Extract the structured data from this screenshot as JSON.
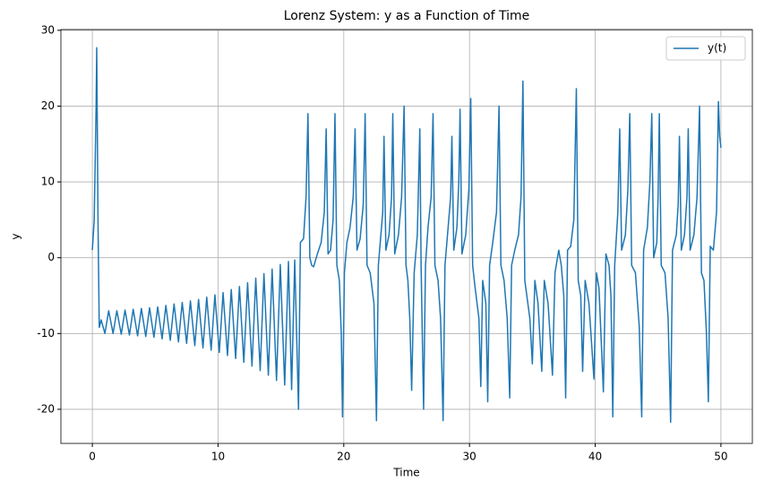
{
  "chart_data": {
    "type": "line",
    "title": "Lorenz System: y as a Function of Time",
    "xlabel": "Time",
    "ylabel": "y",
    "x": [
      0,
      0.15,
      0.3,
      0.35,
      0.45,
      0.55,
      0.7,
      1.0,
      1.3,
      1.65,
      1.95,
      2.3,
      2.6,
      2.95,
      3.25,
      3.6,
      3.9,
      4.25,
      4.55,
      4.9,
      5.2,
      5.55,
      5.85,
      6.2,
      6.5,
      6.85,
      7.15,
      7.5,
      7.8,
      8.15,
      8.45,
      8.8,
      9.1,
      9.45,
      9.75,
      10.1,
      10.4,
      10.75,
      11.05,
      11.4,
      11.7,
      12.05,
      12.35,
      12.7,
      13.0,
      13.35,
      13.65,
      14.0,
      14.3,
      14.65,
      14.95,
      15.3,
      15.6,
      15.85,
      16.1,
      16.4,
      16.55,
      16.8,
      17.0,
      17.15,
      17.3,
      17.45,
      17.6,
      17.9,
      18.2,
      18.45,
      18.6,
      18.75,
      18.95,
      19.15,
      19.3,
      19.45,
      19.65,
      19.8,
      19.9,
      20.05,
      20.25,
      20.5,
      20.75,
      20.9,
      21.05,
      21.3,
      21.55,
      21.7,
      21.85,
      22.1,
      22.4,
      22.6,
      22.75,
      22.95,
      23.1,
      23.2,
      23.35,
      23.6,
      23.8,
      23.9,
      24.05,
      24.35,
      24.6,
      24.8,
      24.95,
      25.1,
      25.25,
      25.4,
      25.6,
      25.85,
      26.05,
      26.15,
      26.35,
      26.5,
      26.7,
      26.95,
      27.1,
      27.25,
      27.5,
      27.7,
      27.9,
      28.05,
      28.3,
      28.5,
      28.6,
      28.75,
      29.0,
      29.15,
      29.25,
      29.4,
      29.7,
      29.95,
      30.1,
      30.25,
      30.45,
      30.6,
      30.75,
      30.9,
      31.05,
      31.3,
      31.45,
      31.6,
      31.85,
      32.15,
      32.35,
      32.5,
      32.75,
      33.0,
      33.2,
      33.35,
      33.6,
      33.9,
      34.1,
      34.25,
      34.4,
      34.6,
      34.8,
      35.0,
      35.2,
      35.45,
      35.75,
      35.95,
      36.25,
      36.6,
      36.8,
      37.1,
      37.3,
      37.5,
      37.65,
      37.8,
      38.05,
      38.3,
      38.5,
      38.65,
      38.85,
      39.0,
      39.2,
      39.5,
      39.9,
      40.1,
      40.3,
      40.65,
      40.85,
      41.1,
      41.25,
      41.4,
      41.55,
      41.8,
      41.95,
      42.1,
      42.4,
      42.6,
      42.75,
      42.9,
      43.2,
      43.5,
      43.7,
      43.85,
      44.15,
      44.35,
      44.5,
      44.65,
      44.9,
      45.0,
      45.1,
      45.25,
      45.55,
      45.8,
      46.0,
      46.15,
      46.45,
      46.6,
      46.7,
      46.85,
      47.1,
      47.3,
      47.4,
      47.55,
      47.85,
      48.1,
      48.3,
      48.45,
      48.65,
      48.85,
      49.0,
      49.15,
      49.4,
      49.65,
      49.8,
      49.9,
      50
    ],
    "series": [
      {
        "name": "y(t)",
        "color": "#1f77b4",
        "values": [
          1,
          5,
          20,
          27.7,
          5,
          -9.2,
          -8.2,
          -10,
          -7.0,
          -10.0,
          -7.0,
          -10.1,
          -6.9,
          -10.2,
          -6.8,
          -10.3,
          -6.7,
          -10.4,
          -6.6,
          -10.5,
          -6.5,
          -10.7,
          -6.3,
          -10.9,
          -6.1,
          -11.1,
          -5.9,
          -11.3,
          -5.7,
          -11.6,
          -5.5,
          -11.9,
          -5.2,
          -12.2,
          -4.9,
          -12.5,
          -4.6,
          -12.9,
          -4.2,
          -13.3,
          -3.8,
          -13.8,
          -3.3,
          -14.3,
          -2.7,
          -14.9,
          -2.1,
          -15.5,
          -1.5,
          -16.2,
          -0.9,
          -16.8,
          -0.5,
          -17.4,
          -0.3,
          -20,
          2,
          2.5,
          8,
          19,
          0,
          -1,
          -1.2,
          0.5,
          2,
          6,
          17,
          0.5,
          1,
          5,
          19,
          -1,
          -3,
          -10,
          -21,
          -2,
          2,
          4,
          8,
          17,
          1,
          2.5,
          7,
          19,
          -1,
          -2,
          -6,
          -21.5,
          -1,
          3,
          6,
          16,
          1,
          3,
          8,
          19,
          0.5,
          3,
          8,
          20,
          -1,
          -3,
          -8,
          -17.5,
          -2,
          3,
          17,
          -1,
          -20,
          -1,
          4,
          8,
          19,
          -1,
          -3,
          -8,
          -21.5,
          -1,
          4,
          8,
          16,
          1,
          4,
          10,
          19.6,
          0.5,
          3,
          9,
          21,
          -1,
          -4,
          -6,
          -8,
          -17,
          -3,
          -6,
          -19,
          -1,
          2,
          6,
          20,
          -1,
          -3,
          -8,
          -18.5,
          -1,
          1,
          3,
          8,
          23.3,
          -3,
          -5.5,
          -8,
          -14,
          -3,
          -6,
          -15,
          -3,
          -6,
          -15.5,
          -2,
          1,
          -1,
          -5,
          -18.5,
          1,
          1.5,
          5,
          22.3,
          -3,
          -5,
          -15,
          -3,
          -6,
          -16,
          -2,
          -4,
          -17.7,
          0.5,
          -1,
          -5,
          -21,
          -1,
          6,
          17,
          1,
          3,
          9,
          19,
          -1,
          -2,
          -9,
          -21,
          1,
          4,
          10,
          19,
          0,
          2,
          8,
          19,
          -1,
          -2,
          -8,
          -21.7,
          1,
          3,
          7,
          16,
          1,
          3,
          8,
          17,
          1,
          3,
          8,
          20,
          -2,
          -3,
          -10,
          -19,
          1.5,
          1,
          6,
          20.6,
          16,
          14.5
        ]
      }
    ],
    "xlim": [
      -2.5,
      52.5
    ],
    "ylim": [
      -24.5,
      30.1
    ],
    "xticks": [
      0,
      10,
      20,
      30,
      40,
      50
    ],
    "yticks": [
      -20,
      -10,
      0,
      10,
      20,
      30
    ],
    "grid": true,
    "legend": "upper right"
  }
}
